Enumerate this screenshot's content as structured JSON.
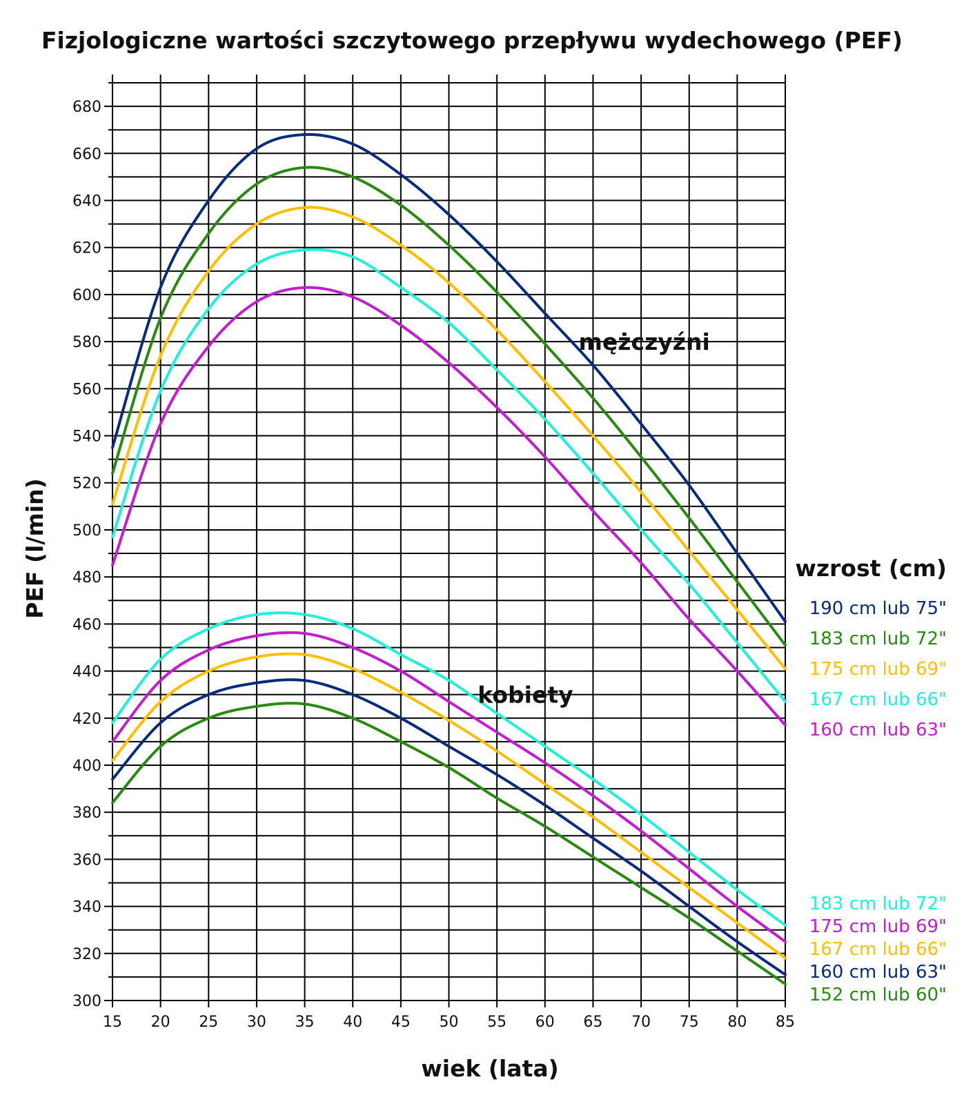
{
  "chart_data": {
    "type": "line",
    "title": "Fizjologiczne wartości szczytowego przepływu wydechowego (PEF)",
    "xlabel": "wiek (lata)",
    "ylabel": "PEF (l/min)",
    "xlim": [
      15,
      85
    ],
    "ylim": [
      300,
      690
    ],
    "x_ticks": [
      15,
      20,
      25,
      30,
      35,
      40,
      45,
      50,
      55,
      60,
      65,
      70,
      75,
      80,
      85
    ],
    "y_ticks": [
      300,
      320,
      340,
      360,
      380,
      400,
      420,
      440,
      460,
      480,
      500,
      520,
      540,
      560,
      580,
      600,
      620,
      640,
      660,
      680
    ],
    "grid": true,
    "legend_title": "wzrost (cm)",
    "annotations": [
      {
        "text": "mężczyźni",
        "x": 63.5,
        "y": 580
      },
      {
        "text": "kobiety",
        "x": 53,
        "y": 430
      }
    ],
    "x": [
      15,
      20,
      25,
      30,
      35,
      40,
      45,
      50,
      55,
      60,
      65,
      70,
      75,
      80,
      85
    ],
    "series": [
      {
        "group": "mężczyźni",
        "name": "190 cm lub 75\"",
        "color": "#0a2a7d",
        "values": [
          535,
          603,
          640,
          662,
          668,
          664,
          651,
          634,
          614,
          592,
          570,
          545,
          519,
          490,
          461
        ]
      },
      {
        "group": "mężczyźni",
        "name": "183 cm lub 72\"",
        "color": "#2a8a10",
        "values": [
          524,
          590,
          626,
          647,
          654,
          650,
          638,
          621,
          601,
          579,
          556,
          531,
          505,
          478,
          451
        ]
      },
      {
        "group": "mężczyźni",
        "name": "175 cm lub 69\"",
        "color": "#ffbf00",
        "values": [
          511,
          574,
          610,
          630,
          637,
          633,
          621,
          605,
          585,
          563,
          540,
          516,
          491,
          466,
          441
        ]
      },
      {
        "group": "mężczyźni",
        "name": "167 cm lub 66\"",
        "color": "#22f0d8",
        "values": [
          497,
          559,
          594,
          613,
          619,
          616,
          603,
          588,
          568,
          547,
          524,
          500,
          477,
          452,
          427
        ]
      },
      {
        "group": "mężczyźni",
        "name": "160 cm lub 63\"",
        "color": "#c21ecf",
        "values": [
          485,
          545,
          578,
          597,
          603,
          599,
          587,
          571,
          552,
          531,
          508,
          486,
          462,
          440,
          417
        ]
      },
      {
        "group": "kobiety",
        "name": "183 cm lub 72\"",
        "color": "#22f0d8",
        "values": [
          418,
          445,
          458,
          464,
          464,
          458,
          447,
          436,
          422,
          408,
          394,
          379,
          363,
          347,
          332
        ]
      },
      {
        "group": "kobiety",
        "name": "175 cm lub 69\"",
        "color": "#c21ecf",
        "values": [
          410,
          436,
          449,
          455,
          456,
          450,
          440,
          427,
          414,
          401,
          387,
          372,
          356,
          340,
          325
        ]
      },
      {
        "group": "kobiety",
        "name": "167 cm lub 66\"",
        "color": "#ffbf00",
        "values": [
          402,
          427,
          440,
          446,
          447,
          441,
          431,
          419,
          406,
          392,
          378,
          363,
          348,
          333,
          318
        ]
      },
      {
        "group": "kobiety",
        "name": "160 cm lub 63\"",
        "color": "#0a2a7d",
        "values": [
          394,
          418,
          430,
          435,
          436,
          430,
          420,
          408,
          396,
          383,
          369,
          355,
          340,
          325,
          311
        ]
      },
      {
        "group": "kobiety",
        "name": "152 cm lub 60\"",
        "color": "#2a8a10",
        "values": [
          384,
          408,
          420,
          425,
          426,
          420,
          410,
          399,
          386,
          374,
          361,
          348,
          335,
          321,
          307
        ]
      }
    ]
  }
}
